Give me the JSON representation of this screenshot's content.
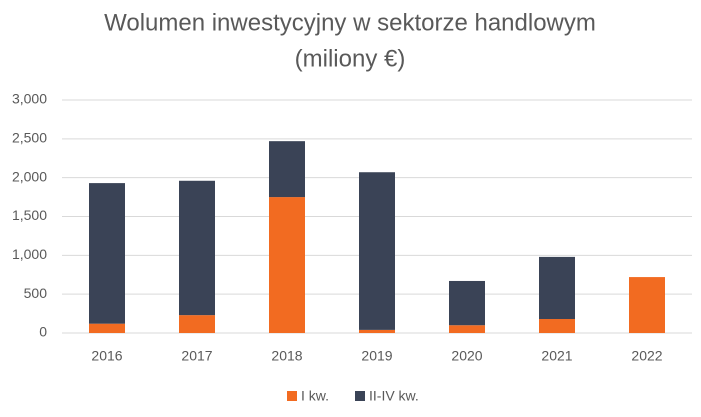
{
  "chart_data": {
    "type": "stacked-bar",
    "title": "Wolumen inwestycyjny w sektorze handlowym",
    "subtitle": "(miliony €)",
    "categories": [
      "2016",
      "2017",
      "2018",
      "2019",
      "2020",
      "2021",
      "2022"
    ],
    "series": [
      {
        "name": "I kw.",
        "color": "#f26b21",
        "values": [
          120,
          230,
          1750,
          40,
          100,
          180,
          720
        ]
      },
      {
        "name": "II-IV kw.",
        "color": "#3a4356",
        "values": [
          1810,
          1730,
          720,
          2030,
          570,
          800,
          0
        ]
      }
    ],
    "ylim": [
      0,
      3000
    ],
    "yticks": [
      0,
      500,
      {
        "value": 1000,
        "label": "1,000"
      },
      {
        "value": 1500,
        "label": "1,500"
      },
      {
        "value": 2000,
        "label": "2,000"
      },
      {
        "value": 2500,
        "label": "2,500"
      },
      {
        "value": 3000,
        "label": "3,000"
      }
    ],
    "grid": true,
    "legend": "bottom"
  }
}
